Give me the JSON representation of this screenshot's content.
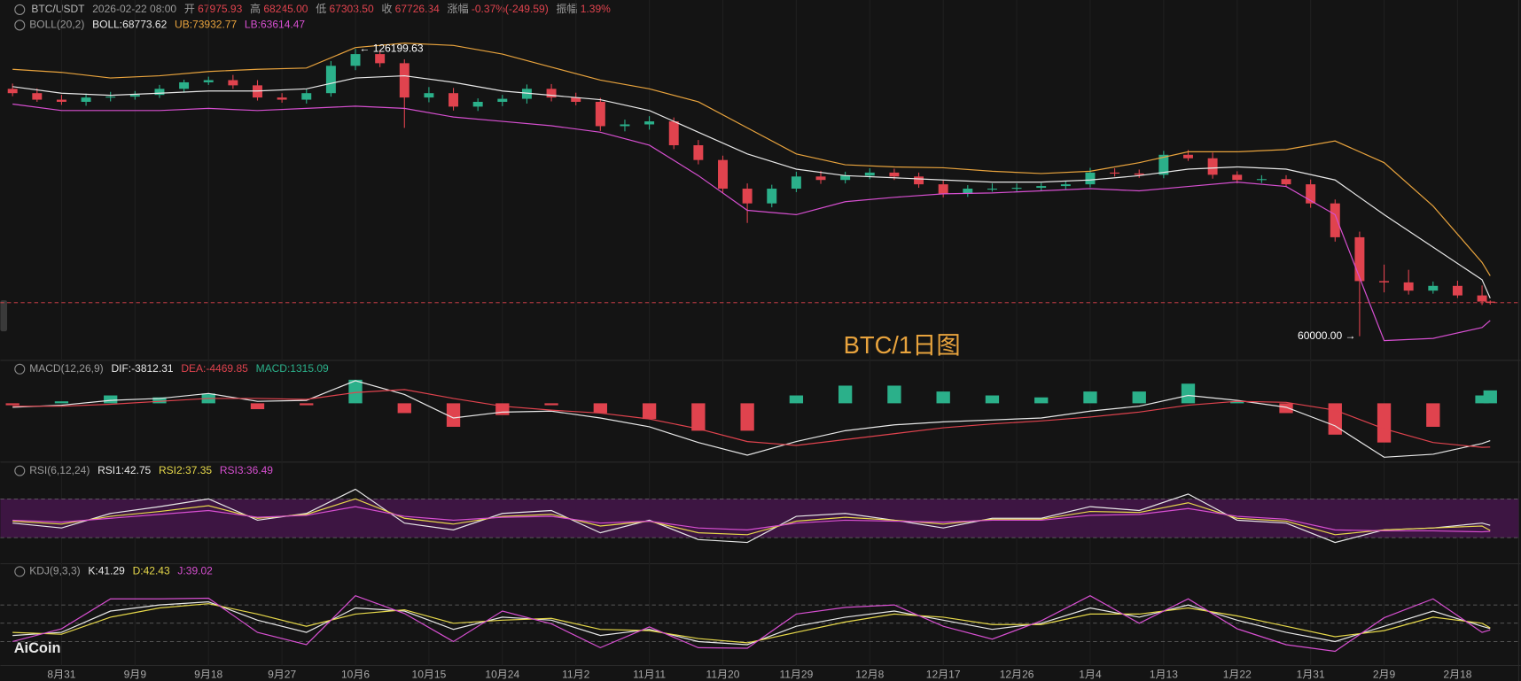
{
  "header": {
    "symbol": "BTC/USDT",
    "datetime": "2026-02-22 08:00",
    "fields": [
      {
        "label": "开",
        "value": "67975.93"
      },
      {
        "label": "高",
        "value": "68245.00"
      },
      {
        "label": "低",
        "value": "67303.50"
      },
      {
        "label": "收",
        "value": "67726.34"
      },
      {
        "label": "涨幅",
        "value": "-0.37%(-249.59)"
      },
      {
        "label": "振幅",
        "value": "1.39%"
      }
    ]
  },
  "watermark": "BTC/1日图",
  "logo": "AiCoin",
  "chart_data": [
    {
      "type": "candlestick",
      "title": "BOLL(20,2)",
      "up_color": "#2bb08a",
      "down_color": "#e0434e",
      "ylim": [
        56000,
        133000
      ],
      "last_price_line": true,
      "x": [
        "8月25",
        "8月28",
        "8月31",
        "9月3",
        "9月6",
        "9月9",
        "9月12",
        "9月15",
        "9月18",
        "9月21",
        "9月24",
        "9月27",
        "9月30",
        "10月3",
        "10月6",
        "10月9",
        "10月12",
        "10月15",
        "10月18",
        "10月21",
        "10月24",
        "10月27",
        "10月30",
        "11月2",
        "11月5",
        "11月8",
        "11月11",
        "11月14",
        "11月17",
        "11月20",
        "11月23",
        "11月26",
        "11月29",
        "12月2",
        "12月5",
        "12月8",
        "12月11",
        "12月14",
        "12月17",
        "12月20",
        "12月23",
        "12月26",
        "12月29",
        "1月1",
        "1月4",
        "1月7",
        "1月10",
        "1月13",
        "1月16",
        "1月19",
        "1月22",
        "1月25",
        "1月28",
        "1月31",
        "2月3",
        "2月6",
        "2月9",
        "2月12",
        "2月15",
        "2月18",
        "2月21",
        "2月22"
      ],
      "open": [
        117000,
        116000,
        114500,
        114000,
        115000,
        115200,
        115600,
        117000,
        118500,
        119000,
        117800,
        115000,
        114500,
        116000,
        122300,
        125000,
        122900,
        115000,
        116000,
        112900,
        114000,
        114700,
        117000,
        115000,
        114000,
        108400,
        108800,
        109500,
        104000,
        100600,
        94000,
        90600,
        94000,
        96800,
        96000,
        97000,
        97700,
        96800,
        95000,
        92800,
        94000,
        94000,
        94200,
        94600,
        95000,
        97700,
        97500,
        97200,
        101800,
        101000,
        97200,
        96000,
        96200,
        95000,
        90600,
        82800,
        72700,
        72400,
        70500,
        71600,
        69400,
        67975.93
      ],
      "high": [
        118200,
        117100,
        115600,
        115900,
        116300,
        116500,
        117900,
        119100,
        119800,
        120200,
        119000,
        116000,
        116900,
        123400,
        126199.63,
        125800,
        123800,
        117400,
        117200,
        114800,
        115600,
        118000,
        118100,
        116100,
        114900,
        109900,
        110700,
        110400,
        105200,
        101600,
        95200,
        94900,
        97900,
        98100,
        97900,
        98700,
        98600,
        97700,
        95900,
        94800,
        95200,
        95200,
        95300,
        95800,
        98800,
        98700,
        98400,
        102700,
        102900,
        102300,
        98000,
        97100,
        97100,
        96100,
        91500,
        84100,
        76500,
        75300,
        72600,
        72800,
        71700,
        68245.0
      ],
      "low": [
        115300,
        114000,
        113300,
        113100,
        114100,
        114500,
        114900,
        116100,
        117900,
        117000,
        114300,
        113800,
        113600,
        115200,
        121300,
        122000,
        108000,
        113900,
        112000,
        111900,
        113000,
        113600,
        114100,
        113200,
        107300,
        107200,
        107600,
        103100,
        99600,
        93000,
        86100,
        89700,
        93200,
        95100,
        95200,
        96200,
        96000,
        94200,
        92000,
        92100,
        93300,
        93200,
        93400,
        93800,
        94300,
        96800,
        96500,
        96400,
        100400,
        96300,
        95200,
        95300,
        94400,
        89600,
        81800,
        60000.0,
        70100,
        69600,
        69800,
        68800,
        67200,
        67303.5
      ],
      "close": [
        116000,
        114500,
        114000,
        115000,
        115200,
        115600,
        117000,
        118500,
        119000,
        117800,
        115000,
        114500,
        116000,
        122300,
        125000,
        122900,
        115000,
        116000,
        112900,
        114000,
        114700,
        117000,
        115000,
        114000,
        108400,
        108800,
        109500,
        104000,
        100600,
        94000,
        90600,
        94000,
        96800,
        96000,
        97000,
        97700,
        96800,
        95000,
        92800,
        94000,
        94000,
        94200,
        94600,
        95000,
        97700,
        97500,
        97200,
        101800,
        101000,
        97200,
        96000,
        96200,
        95000,
        90600,
        82800,
        72700,
        72400,
        70500,
        71600,
        69400,
        67980,
        67726.34
      ],
      "xticks": [
        "8月31",
        "9月9",
        "9月18",
        "9月27",
        "10月6",
        "10月15",
        "10月24",
        "11月2",
        "11月11",
        "11月20",
        "11月29",
        "12月8",
        "12月17",
        "12月26",
        "1月4",
        "1月13",
        "1月22",
        "1月31",
        "2月9",
        "2月18"
      ],
      "annotations": [
        {
          "x": "10月6",
          "value": 126199.63,
          "label": "← 126199.63",
          "side": "right"
        },
        {
          "x": "2月6",
          "value": 60000.0,
          "label": "60000.00 →",
          "side": "left"
        }
      ],
      "overlay": {
        "type": "line",
        "x": [
          "8月25",
          "8月31",
          "9月6",
          "9月12",
          "9月18",
          "9月24",
          "9月30",
          "10月6",
          "10月12",
          "10月18",
          "10月24",
          "10月30",
          "11月5",
          "11月11",
          "11月17",
          "11月23",
          "11月29",
          "12月5",
          "12月11",
          "12月17",
          "12月23",
          "12月29",
          "1月4",
          "1月10",
          "1月16",
          "1月22",
          "1月28",
          "2月3",
          "2月9",
          "2月15",
          "2月21",
          "2月22"
        ],
        "series": [
          {
            "name": "BOLL:68773.62",
            "color": "#e8e8e8",
            "values": [
              117500,
              116000,
              115500,
              116000,
              116500,
              116500,
              117000,
              119500,
              120000,
              118500,
              116500,
              115500,
              114500,
              112000,
              107000,
              102000,
              98500,
              97000,
              96500,
              96000,
              95500,
              95500,
              96000,
              97000,
              98500,
              99000,
              98500,
              96000,
              88000,
              80500,
              73000,
              68773.62
            ]
          },
          {
            "name": "UB:73932.77",
            "color": "#e8a33d",
            "values": [
              121500,
              120800,
              119500,
              120000,
              121000,
              121500,
              121800,
              126500,
              127500,
              127000,
              125000,
              122000,
              119000,
              117000,
              114000,
              108000,
              102000,
              99500,
              99000,
              98800,
              98000,
              97500,
              98000,
              100000,
              102500,
              102500,
              103000,
              105000,
              100000,
              90000,
              77000,
              73932.77
            ]
          },
          {
            "name": "LB:63614.47",
            "color": "#d64fd0",
            "values": [
              113500,
              112000,
              112000,
              112000,
              112500,
              112000,
              112500,
              113000,
              112500,
              110500,
              109500,
              108500,
              107000,
              104000,
              97000,
              89000,
              88000,
              91000,
              92000,
              92800,
              93000,
              93500,
              94000,
              93500,
              94500,
              95500,
              94500,
              88000,
              59000,
              59500,
              62000,
              63614.47
            ]
          }
        ]
      }
    },
    {
      "type": "macd",
      "title": "MACD(12,26,9)",
      "ylim": [
        -5800,
        2600
      ],
      "zero_line": true,
      "x": [
        "8月25",
        "8月31",
        "9月6",
        "9月12",
        "9月18",
        "9月24",
        "9月30",
        "10月6",
        "10月12",
        "10月18",
        "10月24",
        "10月30",
        "11月5",
        "11月11",
        "11月17",
        "11月23",
        "11月29",
        "12月5",
        "12月11",
        "12月17",
        "12月23",
        "12月29",
        "1月4",
        "1月10",
        "1月16",
        "1月22",
        "1月28",
        "2月3",
        "2月9",
        "2月15",
        "2月21",
        "2月22"
      ],
      "series": [
        {
          "name": "DIF:-3812.31",
          "color": "#e8e8e8",
          "style": "line",
          "values": [
            -400,
            -200,
            300,
            500,
            1000,
            200,
            300,
            2300,
            900,
            -1500,
            -900,
            -800,
            -1500,
            -2400,
            -4000,
            -5300,
            -3900,
            -2800,
            -2200,
            -1900,
            -1700,
            -1500,
            -800,
            -300,
            800,
            300,
            -400,
            -2300,
            -5500,
            -5200,
            -4100,
            -3812.31
          ]
        },
        {
          "name": "DEA:-4469.85",
          "color": "#e0434e",
          "style": "line",
          "values": [
            -300,
            -300,
            -100,
            200,
            500,
            500,
            400,
            1100,
            1400,
            500,
            -300,
            -700,
            -1000,
            -1600,
            -2600,
            -3900,
            -4300,
            -3700,
            -3100,
            -2500,
            -2100,
            -1800,
            -1400,
            -900,
            -200,
            200,
            100,
            -700,
            -2600,
            -4000,
            -4500,
            -4469.85
          ]
        },
        {
          "name": "MACD:1315.09",
          "color": "#2bb08a",
          "negative_color": "#e0434e",
          "style": "bar",
          "values": [
            -200,
            200,
            800,
            600,
            1000,
            -600,
            -200,
            2400,
            -1000,
            -2400,
            -1200,
            -200,
            -1000,
            -1600,
            -2800,
            -2800,
            800,
            1800,
            1800,
            1200,
            800,
            600,
            1200,
            1200,
            2000,
            200,
            -1000,
            -3200,
            -4000,
            -2400,
            800,
            1315.09
          ]
        }
      ]
    },
    {
      "type": "line",
      "title": "RSI(6,12,24)",
      "ylim": [
        5,
        93
      ],
      "yticks": [
        30,
        70
      ],
      "band": true,
      "band_color": "#3d1542",
      "x": [
        "8月25",
        "8月31",
        "9月6",
        "9月12",
        "9月18",
        "9月24",
        "9月30",
        "10月6",
        "10月12",
        "10月18",
        "10月24",
        "10月30",
        "11月5",
        "11月11",
        "11月17",
        "11月23",
        "11月29",
        "12月5",
        "12月11",
        "12月17",
        "12月23",
        "12月29",
        "1月4",
        "1月10",
        "1月16",
        "1月22",
        "1月28",
        "2月3",
        "2月9",
        "2月15",
        "2月21",
        "2月22"
      ],
      "series": [
        {
          "name": "RSI1:42.75",
          "color": "#e8e8e8",
          "values": [
            45,
            40,
            55,
            62,
            70,
            48,
            55,
            80,
            45,
            38,
            55,
            58,
            35,
            48,
            28,
            25,
            52,
            55,
            48,
            40,
            50,
            50,
            62,
            58,
            75,
            48,
            45,
            25,
            38,
            40,
            45,
            42.75
          ]
        },
        {
          "name": "RSI2:37.35",
          "color": "#e6d84a",
          "values": [
            47,
            44,
            52,
            57,
            63,
            50,
            54,
            70,
            50,
            44,
            52,
            54,
            42,
            47,
            35,
            33,
            47,
            51,
            48,
            44,
            49,
            49,
            57,
            56,
            66,
            50,
            47,
            33,
            38,
            40,
            42,
            37.35
          ]
        },
        {
          "name": "RSI3:36.49",
          "color": "#d64fd0",
          "values": [
            48,
            46,
            50,
            54,
            58,
            51,
            53,
            62,
            52,
            48,
            51,
            52,
            45,
            47,
            40,
            38,
            45,
            48,
            47,
            46,
            48,
            48,
            53,
            54,
            60,
            52,
            49,
            38,
            37,
            37,
            36,
            36.49
          ]
        }
      ]
    },
    {
      "type": "line",
      "title": "KDJ(9,3,3)",
      "ylim": [
        -16,
        122
      ],
      "yticks": [
        20,
        50,
        80
      ],
      "band": false,
      "x": [
        "8月25",
        "8月31",
        "9月6",
        "9月12",
        "9月18",
        "9月24",
        "9月30",
        "10月6",
        "10月12",
        "10月18",
        "10月24",
        "10月30",
        "11月5",
        "11月11",
        "11月17",
        "11月23",
        "11月29",
        "12月5",
        "12月11",
        "12月17",
        "12月23",
        "12月29",
        "1月4",
        "1月10",
        "1月16",
        "1月22",
        "1月28",
        "2月3",
        "2月9",
        "2月15",
        "2月21",
        "2月22"
      ],
      "series": [
        {
          "name": "K:41.29",
          "color": "#e8e8e8",
          "values": [
            30,
            35,
            70,
            80,
            85,
            55,
            35,
            75,
            70,
            40,
            60,
            55,
            30,
            40,
            20,
            15,
            45,
            60,
            70,
            55,
            40,
            50,
            75,
            60,
            80,
            55,
            35,
            20,
            45,
            70,
            45,
            41.29
          ]
        },
        {
          "name": "D:42.43",
          "color": "#e6d84a",
          "values": [
            35,
            32,
            60,
            75,
            82,
            65,
            45,
            65,
            72,
            50,
            55,
            58,
            40,
            38,
            25,
            18,
            35,
            52,
            65,
            60,
            48,
            48,
            65,
            65,
            75,
            62,
            45,
            28,
            38,
            60,
            50,
            42.43
          ]
        },
        {
          "name": "J:39.02",
          "color": "#d64fd0",
          "values": [
            20,
            41,
            90,
            90,
            91,
            35,
            15,
            95,
            66,
            20,
            70,
            49,
            10,
            44,
            10,
            9,
            65,
            76,
            80,
            45,
            24,
            54,
            95,
            50,
            90,
            41,
            15,
            4,
            59,
            90,
            35,
            39.02
          ]
        }
      ]
    }
  ]
}
